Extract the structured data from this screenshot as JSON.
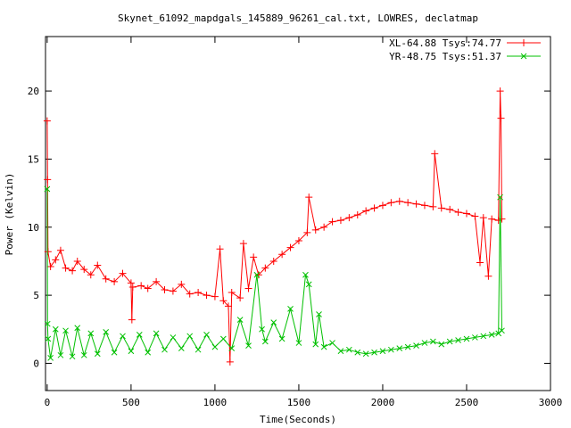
{
  "chart_data": {
    "type": "line",
    "title": "Skynet_61092_mapdgals_145889_96261_cal.txt, LOWRES, declatmap",
    "xlabel": "Time(Seconds)",
    "ylabel": "Power (Kelvin)",
    "xlim": [
      -10,
      3000
    ],
    "ylim": [
      -2,
      24
    ],
    "x_ticks": [
      0,
      500,
      1000,
      1500,
      2000,
      2500,
      3000
    ],
    "y_ticks": [
      0,
      5,
      10,
      15,
      20
    ],
    "x_tick_labels": [
      "0",
      "500",
      "1000",
      "1500",
      "2000",
      "2500",
      "3000"
    ],
    "y_tick_labels": [
      "0",
      "5",
      "10",
      "15",
      "20"
    ],
    "legend_position": "top-right",
    "grid": false,
    "series": [
      {
        "name": "XL-64.88 Tsys:74.77",
        "color": "#ff0000",
        "marker": "plus",
        "points": [
          [
            0,
            17.8
          ],
          [
            2,
            13.5
          ],
          [
            5,
            8.2
          ],
          [
            20,
            7.1
          ],
          [
            50,
            7.6
          ],
          [
            80,
            8.3
          ],
          [
            110,
            7.0
          ],
          [
            150,
            6.8
          ],
          [
            180,
            7.5
          ],
          [
            220,
            6.9
          ],
          [
            260,
            6.5
          ],
          [
            300,
            7.2
          ],
          [
            350,
            6.2
          ],
          [
            400,
            6.0
          ],
          [
            450,
            6.6
          ],
          [
            500,
            5.9
          ],
          [
            505,
            3.2
          ],
          [
            510,
            5.6
          ],
          [
            560,
            5.7
          ],
          [
            600,
            5.5
          ],
          [
            650,
            6.0
          ],
          [
            700,
            5.4
          ],
          [
            750,
            5.3
          ],
          [
            800,
            5.8
          ],
          [
            850,
            5.1
          ],
          [
            900,
            5.2
          ],
          [
            950,
            5.0
          ],
          [
            1000,
            4.9
          ],
          [
            1030,
            8.4
          ],
          [
            1050,
            4.6
          ],
          [
            1080,
            4.2
          ],
          [
            1090,
            0.1
          ],
          [
            1100,
            5.2
          ],
          [
            1150,
            4.8
          ],
          [
            1170,
            8.8
          ],
          [
            1200,
            5.5
          ],
          [
            1230,
            7.8
          ],
          [
            1260,
            6.5
          ],
          [
            1300,
            7.0
          ],
          [
            1350,
            7.5
          ],
          [
            1400,
            8.0
          ],
          [
            1450,
            8.5
          ],
          [
            1500,
            9.0
          ],
          [
            1550,
            9.6
          ],
          [
            1560,
            12.2
          ],
          [
            1600,
            9.8
          ],
          [
            1650,
            10.0
          ],
          [
            1700,
            10.4
          ],
          [
            1750,
            10.5
          ],
          [
            1800,
            10.7
          ],
          [
            1850,
            10.9
          ],
          [
            1900,
            11.2
          ],
          [
            1950,
            11.4
          ],
          [
            2000,
            11.6
          ],
          [
            2050,
            11.8
          ],
          [
            2100,
            11.9
          ],
          [
            2150,
            11.8
          ],
          [
            2200,
            11.7
          ],
          [
            2250,
            11.6
          ],
          [
            2300,
            11.5
          ],
          [
            2310,
            15.4
          ],
          [
            2350,
            11.4
          ],
          [
            2400,
            11.3
          ],
          [
            2450,
            11.1
          ],
          [
            2500,
            11.0
          ],
          [
            2550,
            10.8
          ],
          [
            2580,
            7.4
          ],
          [
            2600,
            10.7
          ],
          [
            2630,
            6.4
          ],
          [
            2650,
            10.6
          ],
          [
            2690,
            10.5
          ],
          [
            2700,
            20.0
          ],
          [
            2705,
            18.0
          ],
          [
            2710,
            10.6
          ]
        ]
      },
      {
        "name": "YR-48.75 Tsys:51.37",
        "color": "#00c000",
        "marker": "cross",
        "points": [
          [
            0,
            12.8
          ],
          [
            2,
            2.9
          ],
          [
            5,
            1.8
          ],
          [
            20,
            0.4
          ],
          [
            50,
            2.5
          ],
          [
            80,
            0.6
          ],
          [
            110,
            2.4
          ],
          [
            150,
            0.5
          ],
          [
            180,
            2.6
          ],
          [
            220,
            0.6
          ],
          [
            260,
            2.2
          ],
          [
            300,
            0.7
          ],
          [
            350,
            2.3
          ],
          [
            400,
            0.8
          ],
          [
            450,
            2.0
          ],
          [
            500,
            0.9
          ],
          [
            550,
            2.1
          ],
          [
            600,
            0.8
          ],
          [
            650,
            2.2
          ],
          [
            700,
            1.0
          ],
          [
            750,
            1.9
          ],
          [
            800,
            1.1
          ],
          [
            850,
            2.0
          ],
          [
            900,
            1.0
          ],
          [
            950,
            2.1
          ],
          [
            1000,
            1.2
          ],
          [
            1050,
            1.8
          ],
          [
            1100,
            1.1
          ],
          [
            1150,
            3.2
          ],
          [
            1200,
            1.3
          ],
          [
            1250,
            6.5
          ],
          [
            1280,
            2.5
          ],
          [
            1300,
            1.6
          ],
          [
            1350,
            3.0
          ],
          [
            1400,
            1.8
          ],
          [
            1450,
            4.0
          ],
          [
            1500,
            1.5
          ],
          [
            1540,
            6.5
          ],
          [
            1560,
            5.8
          ],
          [
            1600,
            1.4
          ],
          [
            1620,
            3.6
          ],
          [
            1650,
            1.2
          ],
          [
            1700,
            1.5
          ],
          [
            1750,
            0.9
          ],
          [
            1800,
            1.0
          ],
          [
            1850,
            0.8
          ],
          [
            1900,
            0.7
          ],
          [
            1950,
            0.8
          ],
          [
            2000,
            0.9
          ],
          [
            2050,
            1.0
          ],
          [
            2100,
            1.1
          ],
          [
            2150,
            1.2
          ],
          [
            2200,
            1.3
          ],
          [
            2250,
            1.5
          ],
          [
            2300,
            1.6
          ],
          [
            2350,
            1.4
          ],
          [
            2400,
            1.6
          ],
          [
            2450,
            1.7
          ],
          [
            2500,
            1.8
          ],
          [
            2550,
            1.9
          ],
          [
            2600,
            2.0
          ],
          [
            2650,
            2.1
          ],
          [
            2690,
            2.2
          ],
          [
            2700,
            12.2
          ],
          [
            2710,
            2.4
          ]
        ]
      }
    ]
  }
}
